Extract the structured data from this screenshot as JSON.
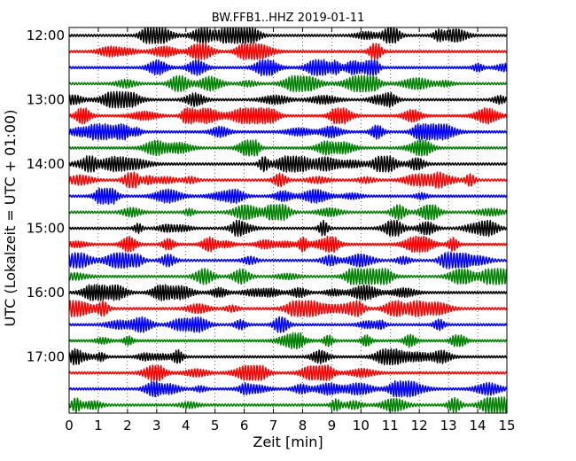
{
  "chart_data": {
    "type": "line",
    "title": "BW.FFB1..HHZ 2019-01-11",
    "xlabel": "Zeit  [min]",
    "ylabel": "UTC (Lokalzeit = UTC + 01:00)",
    "xlim": [
      0,
      15
    ],
    "xticks": [
      "0",
      "1",
      "2",
      "3",
      "4",
      "5",
      "6",
      "7",
      "8",
      "9",
      "10",
      "11",
      "12",
      "13",
      "14",
      "15"
    ],
    "yticks": [
      "12:00",
      "13:00",
      "14:00",
      "15:00",
      "16:00",
      "17:00"
    ],
    "trace_interval_minutes": 15,
    "start_time": "12:00",
    "series_colors": [
      "#000000",
      "#ff0000",
      "#0000ff",
      "#008000"
    ],
    "series": [
      {
        "start": "12:00",
        "color": "#000000"
      },
      {
        "start": "12:15",
        "color": "#ff0000"
      },
      {
        "start": "12:30",
        "color": "#0000ff"
      },
      {
        "start": "12:45",
        "color": "#008000"
      },
      {
        "start": "13:00",
        "color": "#000000"
      },
      {
        "start": "13:15",
        "color": "#ff0000"
      },
      {
        "start": "13:30",
        "color": "#0000ff"
      },
      {
        "start": "13:45",
        "color": "#008000"
      },
      {
        "start": "14:00",
        "color": "#000000"
      },
      {
        "start": "14:15",
        "color": "#ff0000"
      },
      {
        "start": "14:30",
        "color": "#0000ff"
      },
      {
        "start": "14:45",
        "color": "#008000"
      },
      {
        "start": "15:00",
        "color": "#000000"
      },
      {
        "start": "15:15",
        "color": "#ff0000"
      },
      {
        "start": "15:30",
        "color": "#0000ff"
      },
      {
        "start": "15:45",
        "color": "#008000"
      },
      {
        "start": "16:00",
        "color": "#000000"
      },
      {
        "start": "16:15",
        "color": "#ff0000"
      },
      {
        "start": "16:30",
        "color": "#0000ff"
      },
      {
        "start": "16:45",
        "color": "#008000"
      },
      {
        "start": "17:00",
        "color": "#000000"
      },
      {
        "start": "17:15",
        "color": "#ff0000"
      },
      {
        "start": "17:30",
        "color": "#0000ff"
      },
      {
        "start": "17:45",
        "color": "#008000"
      }
    ],
    "grid": true
  }
}
